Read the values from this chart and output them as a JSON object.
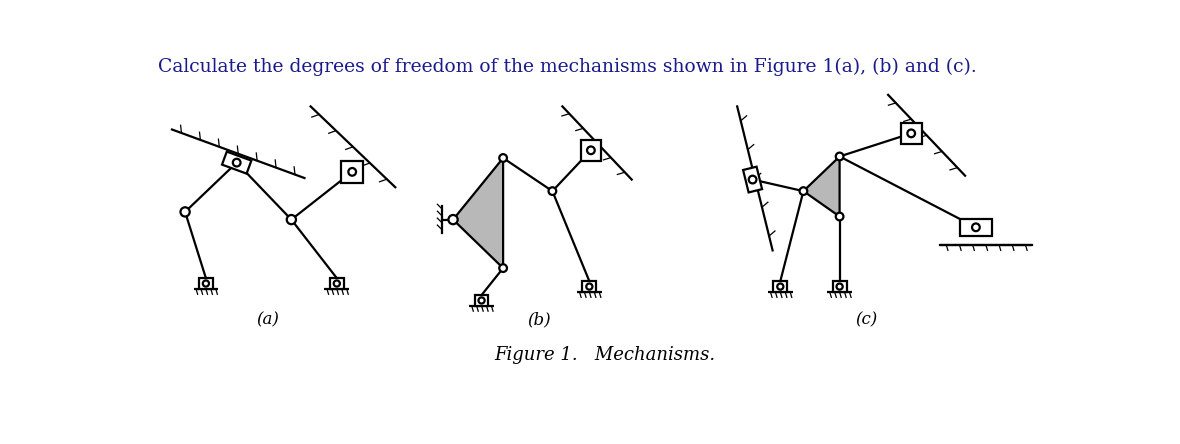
{
  "title": "Calculate the degrees of freedom of the mechanisms shown in Figure 1(a), (b) and (c).",
  "figure_label": "Figure 1.   Mechanisms.",
  "label_a": "(a)",
  "label_b": "(b)",
  "label_c": "(c)",
  "bg_color": "#ffffff",
  "line_color": "#000000",
  "gray_fill": "#b8b8b8",
  "title_color": "#1a1a8c",
  "title_fontsize": 13.5,
  "label_fontsize": 12,
  "fig_label_fontsize": 13,
  "lw": 1.6,
  "lw_thin": 0.9
}
